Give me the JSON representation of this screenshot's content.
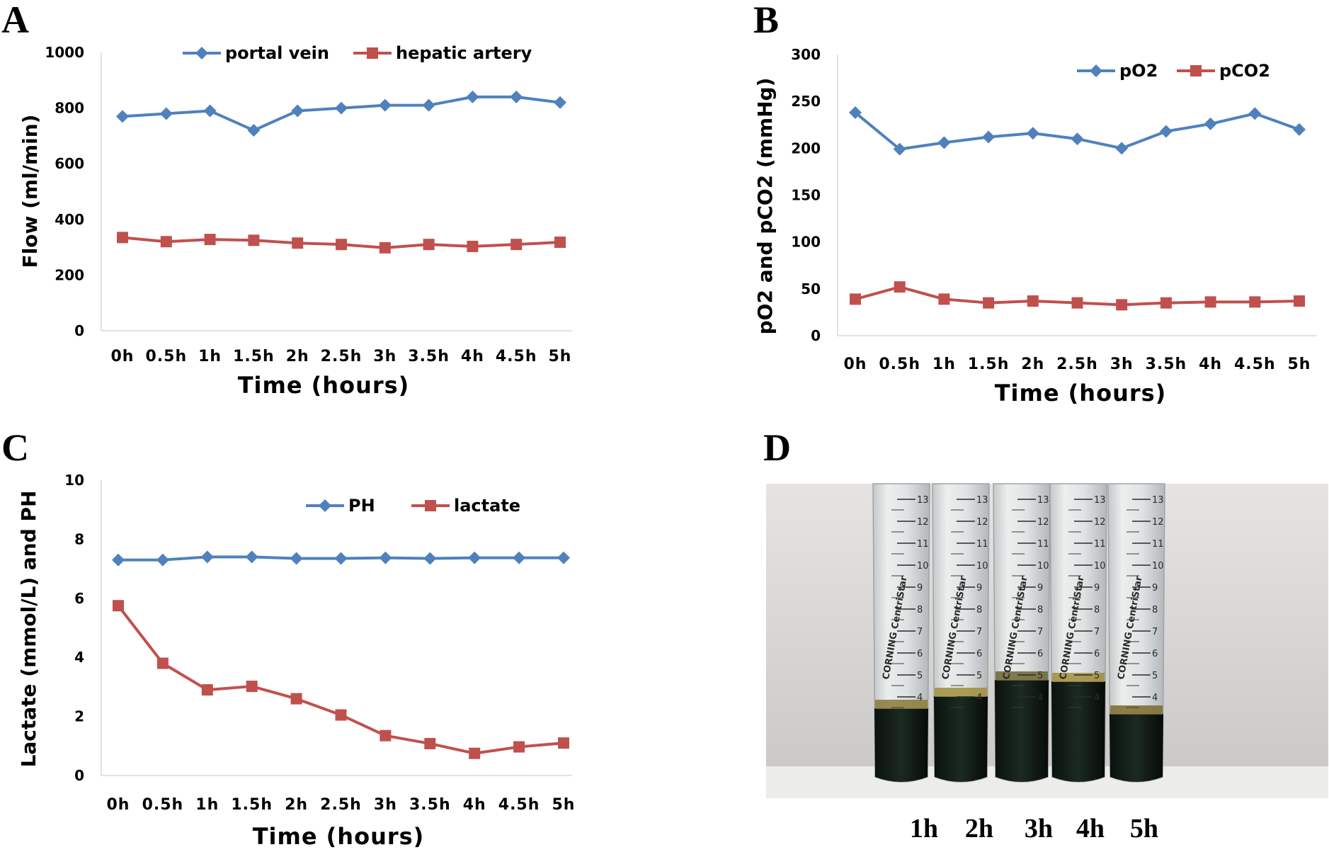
{
  "figure": {
    "panel_labels": [
      "A",
      "B",
      "C",
      "D"
    ],
    "photo_captions": [
      "1h",
      "2h",
      "3h",
      "4h",
      "5h"
    ],
    "tube_scale": [
      "13",
      "12",
      "11",
      "10",
      "9",
      "8",
      "7",
      "6",
      "5",
      "4"
    ],
    "tube_brand": "CORNING CentriStar"
  },
  "colors": {
    "blue": "#4f81bd",
    "red": "#c0504d"
  },
  "chart_data": [
    {
      "panel": "A",
      "type": "line",
      "categories": [
        "0h",
        "0.5h",
        "1h",
        "1.5h",
        "2h",
        "2.5h",
        "3h",
        "3.5h",
        "4h",
        "4.5h",
        "5h"
      ],
      "series": [
        {
          "name": "portal vein",
          "marker": "diamond",
          "color": "#4f81bd",
          "values": [
            770,
            780,
            790,
            720,
            790,
            800,
            810,
            810,
            840,
            840,
            820
          ]
        },
        {
          "name": "hepatic artery",
          "marker": "square",
          "color": "#c0504d",
          "values": [
            335,
            320,
            328,
            325,
            315,
            310,
            298,
            310,
            303,
            310,
            318
          ]
        }
      ],
      "title": "",
      "xlabel": "Time (hours)",
      "ylabel": "Flow (ml/min)",
      "ylim": [
        0,
        1000
      ],
      "yticks": [
        "0",
        "200",
        "400",
        "600",
        "800",
        "1000"
      ],
      "legend": "top-right"
    },
    {
      "panel": "B",
      "type": "line",
      "categories": [
        "0h",
        "0.5h",
        "1h",
        "1.5h",
        "2h",
        "2.5h",
        "3h",
        "3.5h",
        "4h",
        "4.5h",
        "5h"
      ],
      "series": [
        {
          "name": "pO2",
          "marker": "diamond",
          "color": "#4f81bd",
          "values": [
            238,
            199,
            206,
            212,
            216,
            210,
            200,
            218,
            226,
            237,
            220
          ]
        },
        {
          "name": "pCO2",
          "marker": "square",
          "color": "#c0504d",
          "values": [
            39,
            52,
            39,
            35,
            37,
            35,
            33,
            35,
            36,
            36,
            37
          ]
        }
      ],
      "title": "",
      "xlabel": "Time (hours)",
      "ylabel": "pO2 and pCO2 (mmHg)",
      "ylim": [
        0,
        300
      ],
      "yticks": [
        "0",
        "50",
        "100",
        "150",
        "200",
        "250",
        "300"
      ],
      "legend": "top-right"
    },
    {
      "panel": "C",
      "type": "line",
      "categories": [
        "0h",
        "0.5h",
        "1h",
        "1.5h",
        "2h",
        "2.5h",
        "3h",
        "3.5h",
        "4h",
        "4.5h",
        "5h"
      ],
      "series": [
        {
          "name": "PH",
          "marker": "diamond",
          "color": "#4f81bd",
          "values": [
            7.3,
            7.3,
            7.4,
            7.4,
            7.35,
            7.35,
            7.37,
            7.35,
            7.37,
            7.37,
            7.37
          ]
        },
        {
          "name": "lactate",
          "marker": "square",
          "color": "#c0504d",
          "values": [
            5.75,
            3.8,
            2.9,
            3.02,
            2.6,
            2.05,
            1.35,
            1.08,
            0.75,
            0.97,
            1.1
          ]
        }
      ],
      "title": "",
      "xlabel": "Time (hours)",
      "ylabel": "Lactate (mmol/L) and PH",
      "ylim": [
        0,
        10
      ],
      "yticks": [
        "0",
        "2",
        "4",
        "6",
        "8",
        "10"
      ],
      "legend": "top-right"
    }
  ]
}
